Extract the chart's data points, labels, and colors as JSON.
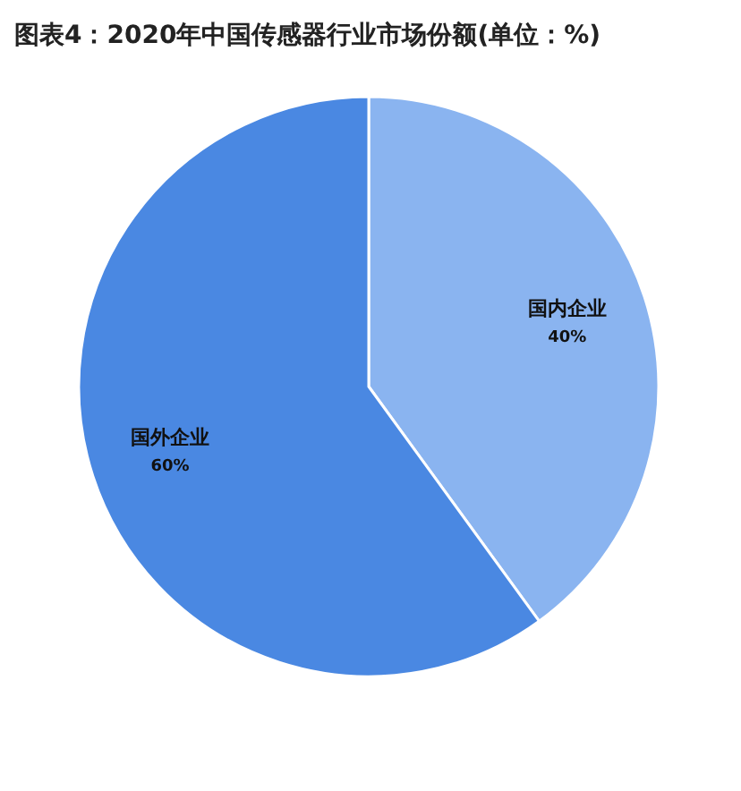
{
  "chart_data": {
    "type": "pie",
    "title": "图表4：2020年中国传感器行业市场份额(单位：%)",
    "categories": [
      "国内企业",
      "国外企业"
    ],
    "values": [
      40,
      60
    ],
    "colors": [
      "#8ab4f0",
      "#4a88e2"
    ],
    "value_labels": [
      "40%",
      "60%"
    ]
  }
}
